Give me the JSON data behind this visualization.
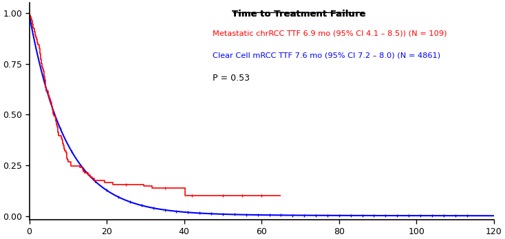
{
  "title": "Time to Treatment Failure",
  "legend_red": "Metastatic chrRCC TTF 6.9 mo (95% CI 4.1 – 8.5)) (N = 109)",
  "legend_blue": "Clear Cell mRCC TTF 7.6 mo (95% CI 7.2 – 8.0) (N = 4861)",
  "pvalue": "P = 0.53",
  "xlim": [
    0,
    120
  ],
  "ylim": [
    -0.02,
    1.05
  ],
  "xticks": [
    0,
    20,
    40,
    60,
    80,
    100,
    120
  ],
  "yticks": [
    0.0,
    0.25,
    0.5,
    0.75,
    1.0
  ],
  "color_red": "#FF0000",
  "color_blue": "#0000FF",
  "background": "#FFFFFF"
}
